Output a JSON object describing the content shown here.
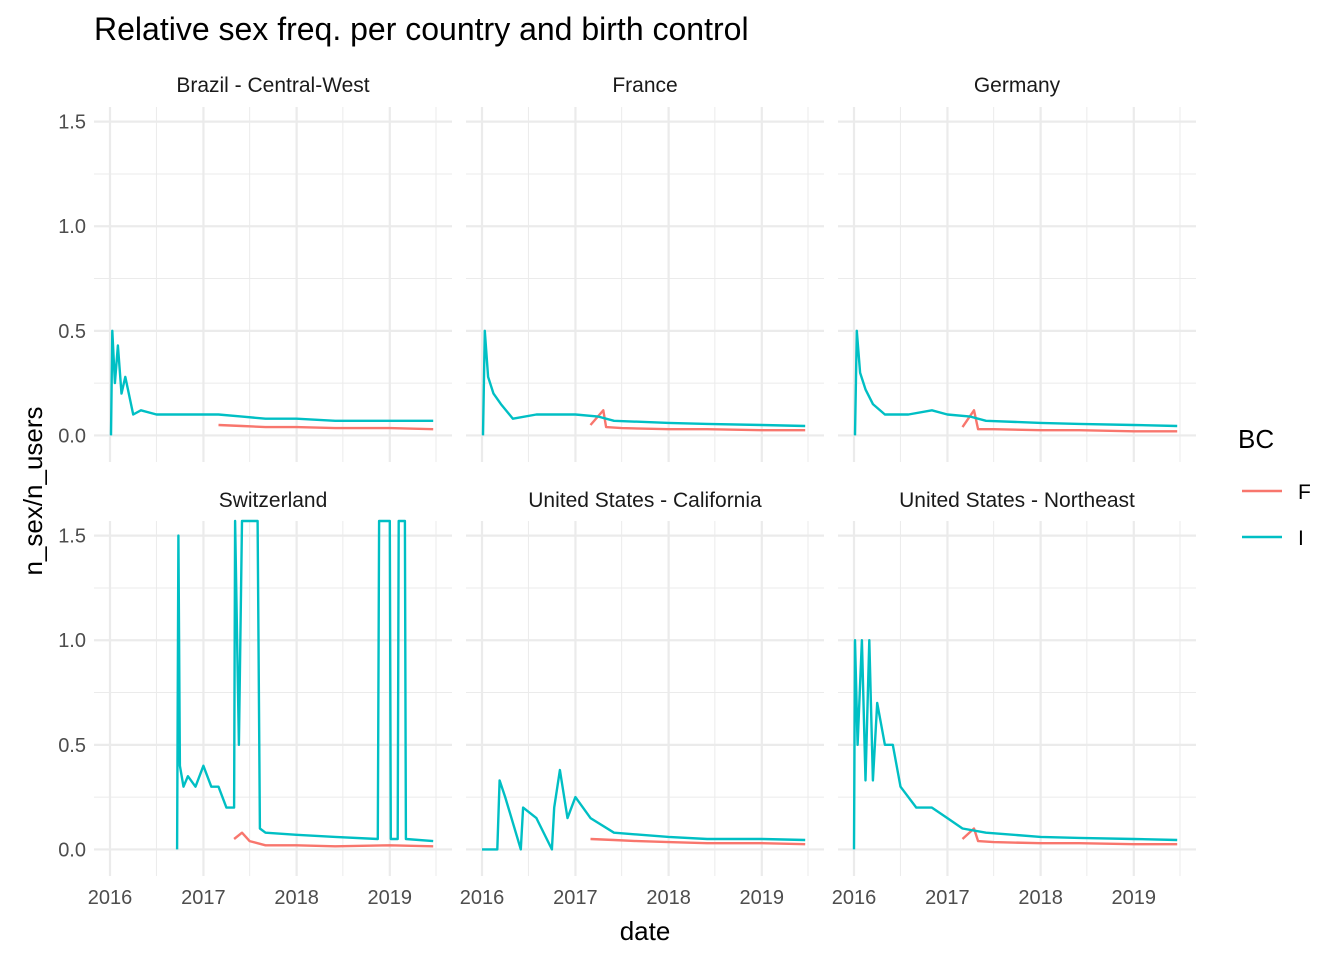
{
  "chart_data": {
    "type": "line",
    "title": "Relative sex freq. per country and birth control",
    "xlabel": "date",
    "ylabel": "n_sex/n_users",
    "x_range": [
      "2016-01-01",
      "2019-07-01"
    ],
    "ylim": [
      -0.06,
      1.57
    ],
    "x_ticks": [
      {
        "label": "2016",
        "value": "2016-01-01"
      },
      {
        "label": "2017",
        "value": "2017-01-01"
      },
      {
        "label": "2018",
        "value": "2018-01-01"
      },
      {
        "label": "2019",
        "value": "2019-01-01"
      }
    ],
    "y_ticks": [
      {
        "label": "0.0",
        "value": 0
      },
      {
        "label": "0.5",
        "value": 0.5
      },
      {
        "label": "1.0",
        "value": 1.0
      },
      {
        "label": "1.5",
        "value": 1.5
      }
    ],
    "grid": true,
    "legend": {
      "title": "BC",
      "position": "right",
      "entries": [
        {
          "label": "F",
          "color": "#F8766D"
        },
        {
          "label": "I",
          "color": "#00BFC4"
        }
      ]
    },
    "facets": [
      {
        "name": "Brazil - Central-West",
        "series": [
          {
            "name": "F",
            "color": "#F8766D",
            "x": [
              "2017-03-01",
              "2017-06-01",
              "2017-09-01",
              "2018-01-01",
              "2018-06-01",
              "2019-01-01",
              "2019-06-20"
            ],
            "y": [
              0.05,
              0.045,
              0.04,
              0.04,
              0.035,
              0.035,
              0.03
            ]
          },
          {
            "name": "I",
            "color": "#00BFC4",
            "x": [
              "2016-01-05",
              "2016-01-10",
              "2016-01-20",
              "2016-02-01",
              "2016-02-15",
              "2016-03-01",
              "2016-04-01",
              "2016-05-01",
              "2016-07-01",
              "2016-09-01",
              "2016-11-01",
              "2017-01-01",
              "2017-03-01",
              "2017-06-01",
              "2017-09-01",
              "2018-01-01",
              "2018-06-01",
              "2019-01-01",
              "2019-06-20"
            ],
            "y": [
              0.0,
              0.5,
              0.25,
              0.43,
              0.2,
              0.28,
              0.1,
              0.12,
              0.1,
              0.1,
              0.1,
              0.1,
              0.1,
              0.09,
              0.08,
              0.08,
              0.07,
              0.07,
              0.07
            ]
          }
        ]
      },
      {
        "name": "France",
        "series": [
          {
            "name": "F",
            "color": "#F8766D",
            "x": [
              "2017-03-01",
              "2017-04-20",
              "2017-05-01",
              "2017-07-01",
              "2018-01-01",
              "2018-06-01",
              "2019-01-01",
              "2019-06-20"
            ],
            "y": [
              0.05,
              0.12,
              0.04,
              0.035,
              0.03,
              0.03,
              0.025,
              0.025
            ]
          },
          {
            "name": "I",
            "color": "#00BFC4",
            "x": [
              "2016-01-05",
              "2016-01-12",
              "2016-01-25",
              "2016-02-15",
              "2016-03-15",
              "2016-05-01",
              "2016-08-01",
              "2016-11-01",
              "2017-01-01",
              "2017-04-01",
              "2017-06-01",
              "2018-01-01",
              "2018-06-01",
              "2019-01-01",
              "2019-06-20"
            ],
            "y": [
              0.0,
              0.5,
              0.28,
              0.2,
              0.15,
              0.08,
              0.1,
              0.1,
              0.1,
              0.09,
              0.07,
              0.06,
              0.055,
              0.05,
              0.045
            ]
          }
        ]
      },
      {
        "name": "Germany",
        "series": [
          {
            "name": "F",
            "color": "#F8766D",
            "x": [
              "2017-03-01",
              "2017-04-15",
              "2017-05-01",
              "2017-07-01",
              "2018-01-01",
              "2018-06-01",
              "2019-01-01",
              "2019-06-20"
            ],
            "y": [
              0.04,
              0.12,
              0.03,
              0.03,
              0.025,
              0.025,
              0.02,
              0.02
            ]
          },
          {
            "name": "I",
            "color": "#00BFC4",
            "x": [
              "2016-01-05",
              "2016-01-12",
              "2016-01-25",
              "2016-02-15",
              "2016-03-15",
              "2016-05-01",
              "2016-08-01",
              "2016-11-01",
              "2017-01-01",
              "2017-04-01",
              "2017-06-01",
              "2018-01-01",
              "2018-06-01",
              "2019-01-01",
              "2019-06-20"
            ],
            "y": [
              0.0,
              0.5,
              0.3,
              0.22,
              0.15,
              0.1,
              0.1,
              0.12,
              0.1,
              0.09,
              0.07,
              0.06,
              0.055,
              0.05,
              0.045
            ]
          }
        ]
      },
      {
        "name": "Switzerland",
        "series": [
          {
            "name": "F",
            "color": "#F8766D",
            "x": [
              "2017-05-01",
              "2017-06-01",
              "2017-07-01",
              "2017-09-01",
              "2018-01-01",
              "2018-06-01",
              "2019-01-01",
              "2019-06-20"
            ],
            "y": [
              0.05,
              0.08,
              0.04,
              0.02,
              0.02,
              0.015,
              0.02,
              0.015
            ]
          },
          {
            "name": "I",
            "color": "#00BFC4",
            "x": [
              "2016-09-20",
              "2016-09-25",
              "2016-10-01",
              "2016-10-15",
              "2016-11-01",
              "2016-12-01",
              "2017-01-01",
              "2017-02-01",
              "2017-03-01",
              "2017-04-01",
              "2017-05-01",
              "2017-05-05",
              "2017-05-20",
              "2017-06-01",
              "2017-07-01",
              "2017-08-01",
              "2017-08-10",
              "2017-09-01",
              "2018-01-01",
              "2018-06-01",
              "2018-11-15",
              "2018-11-20",
              "2019-01-01",
              "2019-01-05",
              "2019-02-01",
              "2019-02-05",
              "2019-03-01",
              "2019-03-05",
              "2019-06-20"
            ],
            "y": [
              0.0,
              1.5,
              0.4,
              0.3,
              0.35,
              0.3,
              0.4,
              0.3,
              0.3,
              0.2,
              0.2,
              1.57,
              0.5,
              1.57,
              1.57,
              1.57,
              0.1,
              0.08,
              0.07,
              0.06,
              0.05,
              1.57,
              1.57,
              0.05,
              0.05,
              1.57,
              1.57,
              0.05,
              0.04
            ]
          }
        ]
      },
      {
        "name": "United States - California",
        "series": [
          {
            "name": "F",
            "color": "#F8766D",
            "x": [
              "2017-03-01",
              "2017-06-01",
              "2017-09-01",
              "2018-01-01",
              "2018-06-01",
              "2019-01-01",
              "2019-06-20"
            ],
            "y": [
              0.05,
              0.045,
              0.04,
              0.035,
              0.03,
              0.03,
              0.025
            ]
          },
          {
            "name": "I",
            "color": "#00BFC4",
            "x": [
              "2016-01-01",
              "2016-03-01",
              "2016-03-10",
              "2016-04-01",
              "2016-06-01",
              "2016-06-10",
              "2016-08-01",
              "2016-10-01",
              "2016-10-10",
              "2016-11-01",
              "2016-12-01",
              "2017-01-01",
              "2017-03-01",
              "2017-06-01",
              "2018-01-01",
              "2018-06-01",
              "2019-01-01",
              "2019-06-20"
            ],
            "y": [
              0.0,
              0.0,
              0.33,
              0.25,
              0.0,
              0.2,
              0.15,
              0.0,
              0.2,
              0.38,
              0.15,
              0.25,
              0.15,
              0.08,
              0.06,
              0.05,
              0.05,
              0.045
            ]
          }
        ]
      },
      {
        "name": "United States - Northeast",
        "series": [
          {
            "name": "F",
            "color": "#F8766D",
            "x": [
              "2017-03-01",
              "2017-04-15",
              "2017-05-01",
              "2017-07-01",
              "2018-01-01",
              "2018-06-01",
              "2019-01-01",
              "2019-06-20"
            ],
            "y": [
              0.05,
              0.1,
              0.04,
              0.035,
              0.03,
              0.03,
              0.025,
              0.025
            ]
          },
          {
            "name": "I",
            "color": "#00BFC4",
            "x": [
              "2016-01-01",
              "2016-01-05",
              "2016-01-15",
              "2016-02-01",
              "2016-02-15",
              "2016-03-01",
              "2016-03-15",
              "2016-04-01",
              "2016-05-01",
              "2016-06-01",
              "2016-07-01",
              "2016-09-01",
              "2016-11-01",
              "2017-01-01",
              "2017-03-01",
              "2017-06-01",
              "2018-01-01",
              "2018-06-01",
              "2019-01-01",
              "2019-06-20"
            ],
            "y": [
              0.0,
              1.0,
              0.5,
              1.0,
              0.33,
              1.0,
              0.33,
              0.7,
              0.5,
              0.5,
              0.3,
              0.2,
              0.2,
              0.15,
              0.1,
              0.08,
              0.06,
              0.055,
              0.05,
              0.045
            ]
          }
        ]
      }
    ]
  }
}
